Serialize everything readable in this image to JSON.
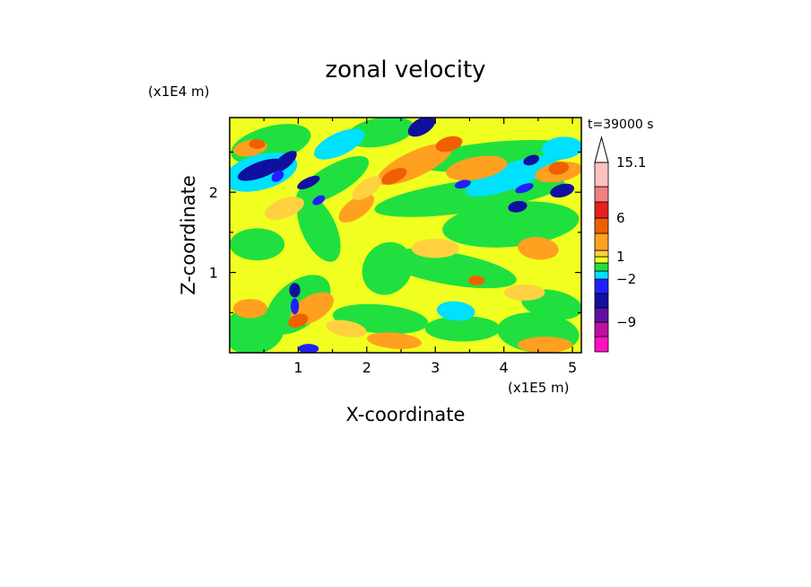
{
  "chart_data": {
    "type": "heatmap",
    "title": "zonal velocity",
    "xlabel": "X-coordinate",
    "ylabel": "Z-coordinate",
    "x_unit": "(x1E5 m)",
    "y_unit": "(x1E4 m)",
    "time_label": "t=39000 s",
    "xlim": [
      0,
      5.13
    ],
    "ylim": [
      0,
      2.93
    ],
    "x_ticks": [
      "1",
      "2",
      "3",
      "4",
      "5"
    ],
    "y_ticks": [
      "1",
      "2"
    ],
    "colorbar": {
      "labels": [
        "15.1",
        "6",
        "1",
        "-2",
        "-9"
      ],
      "levels": [
        {
          "value": 15.1,
          "color": "#ffc0c0"
        },
        {
          "value": 12,
          "color": "#f08080"
        },
        {
          "value": 9,
          "color": "#e82020"
        },
        {
          "value": 6,
          "color": "#f06000"
        },
        {
          "value": 4,
          "color": "#ffa020"
        },
        {
          "value": 2,
          "color": "#ffd040"
        },
        {
          "value": 1,
          "color": "#f0ff20"
        },
        {
          "value": 0,
          "color": "#20e040"
        },
        {
          "value": -1,
          "color": "#00e0ff"
        },
        {
          "value": -2,
          "color": "#2020ff"
        },
        {
          "value": -4,
          "color": "#1010a0"
        },
        {
          "value": -6,
          "color": "#6010a0"
        },
        {
          "value": -9,
          "color": "#c010a0"
        },
        {
          "value": -12,
          "color": "#ff10c0"
        }
      ]
    },
    "palette": {
      "yellow": "#f0ff20",
      "light_orange": "#ffd040",
      "orange": "#ffa020",
      "dark_orange": "#f06000",
      "green": "#20e040",
      "cyan": "#00e0ff",
      "blue": "#2020ff",
      "navy": "#1010a0"
    }
  }
}
